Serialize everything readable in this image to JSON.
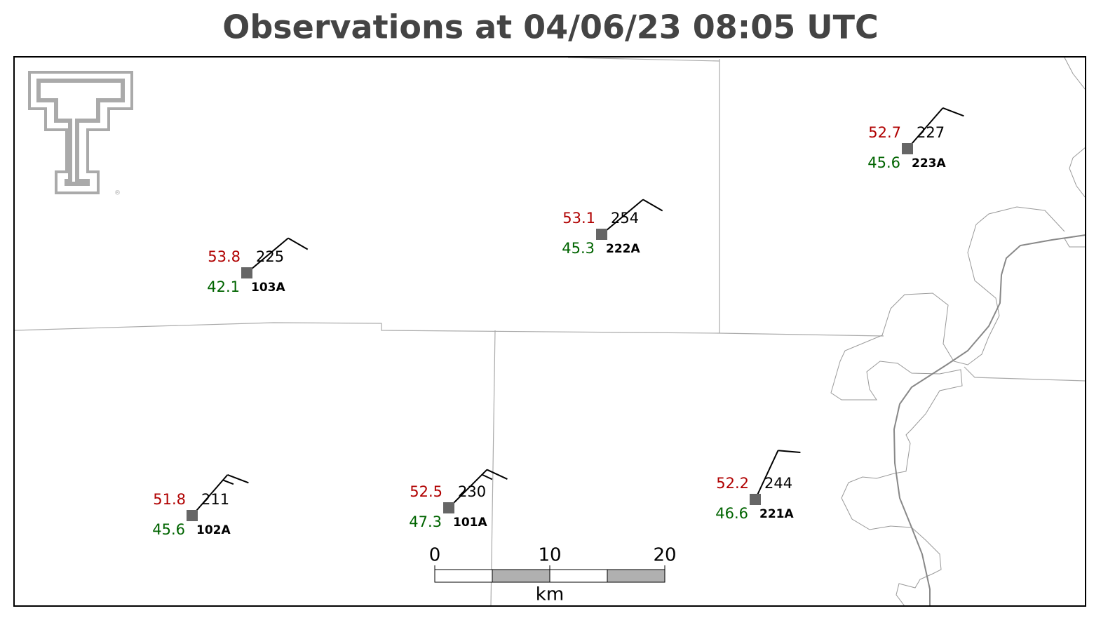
{
  "title": "Observations at 04/06/23 08:05 UTC",
  "stations": [
    {
      "id": "103A",
      "temperature": 53.8,
      "dewpoint": 42.1,
      "value": 225,
      "wind_direction": 50,
      "wind_speed": 10
    },
    {
      "id": "222A",
      "temperature": 53.1,
      "dewpoint": 45.3,
      "value": 254,
      "wind_direction": 50,
      "wind_speed": 10
    },
    {
      "id": "223A",
      "temperature": 52.7,
      "dewpoint": 45.6,
      "value": 227,
      "wind_direction": 41,
      "wind_speed": 10
    },
    {
      "id": "102A",
      "temperature": 51.8,
      "dewpoint": 45.6,
      "value": 211,
      "wind_direction": 41,
      "wind_speed": 15
    },
    {
      "id": "101A",
      "temperature": 52.5,
      "dewpoint": 47.3,
      "value": 230,
      "wind_direction": 45,
      "wind_speed": 15
    },
    {
      "id": "221A",
      "temperature": 52.2,
      "dewpoint": 46.6,
      "value": 244,
      "wind_direction": 25,
      "wind_speed": 10
    }
  ],
  "scale_bar": {
    "ticks": [
      0,
      10,
      20
    ],
    "unit": "km"
  }
}
